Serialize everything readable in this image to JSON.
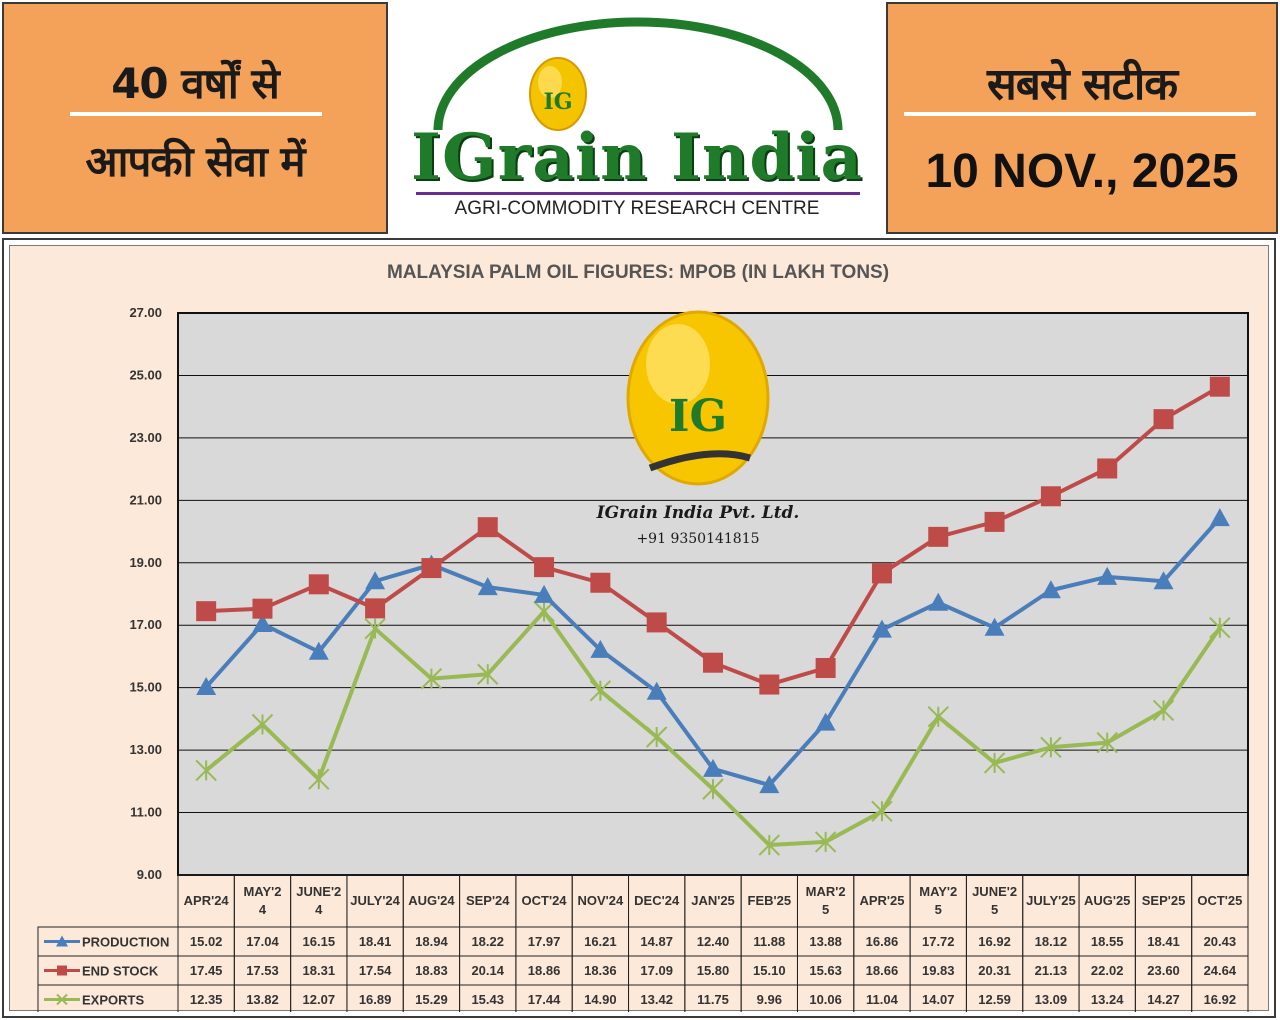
{
  "header": {
    "left_line1": "40 वर्षों से",
    "left_line2": "आपकी सेवा में",
    "right_line1": "सबसे सटीक",
    "date": "10 NOV., 2025",
    "brand_name": "IGrain India",
    "brand_subtitle": "AGRI-COMMODITY RESEARCH CENTRE",
    "logo_letters": "IG"
  },
  "watermark": {
    "company": "IGrain India Pvt. Ltd.",
    "phone": "+91 9350141815",
    "logo_letters": "IG"
  },
  "colors": {
    "header_orange": "#f4a259",
    "brand_green": "#1f7a2a",
    "panel_bg": "#fde9d9",
    "plot_bg": "#d9d9d9",
    "production": "#4a7ebb",
    "end_stock": "#be4b48",
    "exports": "#98b954"
  },
  "chart_data": {
    "type": "line",
    "title": "MALAYSIA PALM OIL FIGURES: MPOB (IN LAKH TONS)",
    "xlabel": "",
    "ylabel": "",
    "ylim": [
      9.0,
      27.0
    ],
    "yticks": [
      "27.00",
      "25.00",
      "23.00",
      "21.00",
      "19.00",
      "17.00",
      "15.00",
      "13.00",
      "11.00",
      "9.00"
    ],
    "grid": true,
    "legend": "data-table-left",
    "categories": [
      "APR'24",
      "MAY'24",
      "JUNE'24",
      "JULY'24",
      "AUG'24",
      "SEP'24",
      "OCT'24",
      "NOV'24",
      "DEC'24",
      "JAN'25",
      "FEB'25",
      "MAR'25",
      "APR'25",
      "MAY'25",
      "JUNE'25",
      "JULY'25",
      "AUG'25",
      "SEP'25",
      "OCT'25"
    ],
    "category_display": [
      [
        "APR'24"
      ],
      [
        "MAY'2",
        "4"
      ],
      [
        "JUNE'2",
        "4"
      ],
      [
        "JULY'24"
      ],
      [
        "AUG'24"
      ],
      [
        "SEP'24"
      ],
      [
        "OCT'24"
      ],
      [
        "NOV'24"
      ],
      [
        "DEC'24"
      ],
      [
        "JAN'25"
      ],
      [
        "FEB'25"
      ],
      [
        "MAR'2",
        "5"
      ],
      [
        "APR'25"
      ],
      [
        "MAY'2",
        "5"
      ],
      [
        "JUNE'2",
        "5"
      ],
      [
        "JULY'25"
      ],
      [
        "AUG'25"
      ],
      [
        "SEP'25"
      ],
      [
        "OCT'25"
      ]
    ],
    "series": [
      {
        "name": "PRODUCTION",
        "marker": "triangle",
        "color": "#4a7ebb",
        "values": [
          15.02,
          17.04,
          16.15,
          18.41,
          18.94,
          18.22,
          17.97,
          16.21,
          14.87,
          12.4,
          11.88,
          13.88,
          16.86,
          17.72,
          16.92,
          18.12,
          18.55,
          18.41,
          20.43
        ],
        "labels": [
          "15.02",
          "17.04",
          "16.15",
          "18.41",
          "18.94",
          "18.22",
          "17.97",
          "16.21",
          "14.87",
          "12.40",
          "11.88",
          "13.88",
          "16.86",
          "17.72",
          "16.92",
          "18.12",
          "18.55",
          "18.41",
          "20.43"
        ]
      },
      {
        "name": "END STOCK",
        "marker": "square",
        "color": "#be4b48",
        "values": [
          17.45,
          17.53,
          18.31,
          17.54,
          18.83,
          20.14,
          18.86,
          18.36,
          17.09,
          15.8,
          15.1,
          15.63,
          18.66,
          19.83,
          20.31,
          21.13,
          22.02,
          23.6,
          24.64
        ],
        "labels": [
          "17.45",
          "17.53",
          "18.31",
          "17.54",
          "18.83",
          "20.14",
          "18.86",
          "18.36",
          "17.09",
          "15.80",
          "15.10",
          "15.63",
          "18.66",
          "19.83",
          "20.31",
          "21.13",
          "22.02",
          "23.60",
          "24.64"
        ]
      },
      {
        "name": "EXPORTS",
        "marker": "star",
        "color": "#98b954",
        "values": [
          12.35,
          13.82,
          12.07,
          16.89,
          15.29,
          15.43,
          17.44,
          14.9,
          13.42,
          11.75,
          9.96,
          10.06,
          11.04,
          14.07,
          12.59,
          13.09,
          13.24,
          14.27,
          16.92
        ],
        "labels": [
          "12.35",
          "13.82",
          "12.07",
          "16.89",
          "15.29",
          "15.43",
          "17.44",
          "14.90",
          "13.42",
          "11.75",
          "9.96",
          "10.06",
          "11.04",
          "14.07",
          "12.59",
          "13.09",
          "13.24",
          "14.27",
          "16.92"
        ]
      }
    ]
  }
}
